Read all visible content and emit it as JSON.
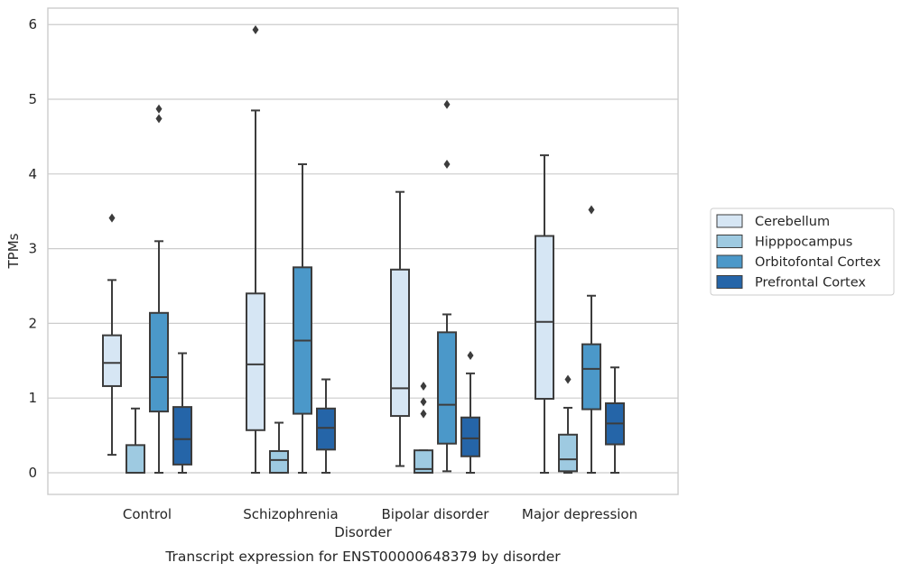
{
  "chart_data": {
    "type": "box",
    "xlabel": "Disorder",
    "ylabel": "TPMs",
    "caption": "Transcript expression for ENST00000648379 by disorder",
    "categories": [
      "Control",
      "Schizophrenia",
      "Bipolar disorder",
      "Major depression"
    ],
    "ylim": [
      -0.29,
      6.22
    ],
    "yticks": [
      0,
      1,
      2,
      3,
      4,
      5,
      6
    ],
    "grid": "horizontal",
    "legend_position": "right",
    "series": [
      {
        "name": "Cerebellum",
        "color": "#d6e6f4",
        "boxes": [
          {
            "whislo": 0.24,
            "q1": 1.16,
            "med": 1.47,
            "q3": 1.84,
            "whishi": 2.58,
            "fliers": [
              3.41
            ]
          },
          {
            "whislo": 0.0,
            "q1": 0.57,
            "med": 1.45,
            "q3": 2.4,
            "whishi": 4.85,
            "fliers": [
              5.93
            ]
          },
          {
            "whislo": 0.09,
            "q1": 0.76,
            "med": 1.13,
            "q3": 2.72,
            "whishi": 3.76,
            "fliers": []
          },
          {
            "whislo": 0.0,
            "q1": 0.99,
            "med": 2.02,
            "q3": 3.17,
            "whishi": 4.25,
            "fliers": []
          }
        ]
      },
      {
        "name": "Hipppocampus",
        "color": "#9ecae1",
        "boxes": [
          {
            "whislo": 0.0,
            "q1": 0.0,
            "med": 0.0,
            "q3": 0.37,
            "whishi": 0.86,
            "fliers": []
          },
          {
            "whislo": 0.0,
            "q1": 0.0,
            "med": 0.17,
            "q3": 0.29,
            "whishi": 0.67,
            "fliers": []
          },
          {
            "whislo": 0.0,
            "q1": 0.0,
            "med": 0.05,
            "q3": 0.3,
            "whishi": 0.3,
            "fliers": [
              0.79,
              0.95,
              1.16
            ]
          },
          {
            "whislo": 0.0,
            "q1": 0.02,
            "med": 0.18,
            "q3": 0.51,
            "whishi": 0.87,
            "fliers": [
              1.25
            ]
          }
        ]
      },
      {
        "name": "Orbitofontal Cortex",
        "color": "#4b98c9",
        "boxes": [
          {
            "whislo": 0.0,
            "q1": 0.82,
            "med": 1.28,
            "q3": 2.14,
            "whishi": 3.1,
            "fliers": [
              4.74,
              4.87
            ]
          },
          {
            "whislo": 0.0,
            "q1": 0.79,
            "med": 1.77,
            "q3": 2.75,
            "whishi": 4.13,
            "fliers": []
          },
          {
            "whislo": 0.02,
            "q1": 0.39,
            "med": 0.91,
            "q3": 1.88,
            "whishi": 2.12,
            "fliers": [
              4.13,
              4.93
            ]
          },
          {
            "whislo": 0.0,
            "q1": 0.85,
            "med": 1.39,
            "q3": 1.72,
            "whishi": 2.37,
            "fliers": [
              3.52
            ]
          }
        ]
      },
      {
        "name": "Prefrontal Cortex",
        "color": "#2565a8",
        "boxes": [
          {
            "whislo": 0.0,
            "q1": 0.11,
            "med": 0.45,
            "q3": 0.88,
            "whishi": 1.6,
            "fliers": []
          },
          {
            "whislo": 0.0,
            "q1": 0.31,
            "med": 0.6,
            "q3": 0.86,
            "whishi": 1.25,
            "fliers": []
          },
          {
            "whislo": 0.0,
            "q1": 0.22,
            "med": 0.46,
            "q3": 0.74,
            "whishi": 1.33,
            "fliers": [
              1.57
            ]
          },
          {
            "whislo": 0.0,
            "q1": 0.38,
            "med": 0.66,
            "q3": 0.93,
            "whishi": 1.41,
            "fliers": []
          }
        ]
      }
    ]
  }
}
